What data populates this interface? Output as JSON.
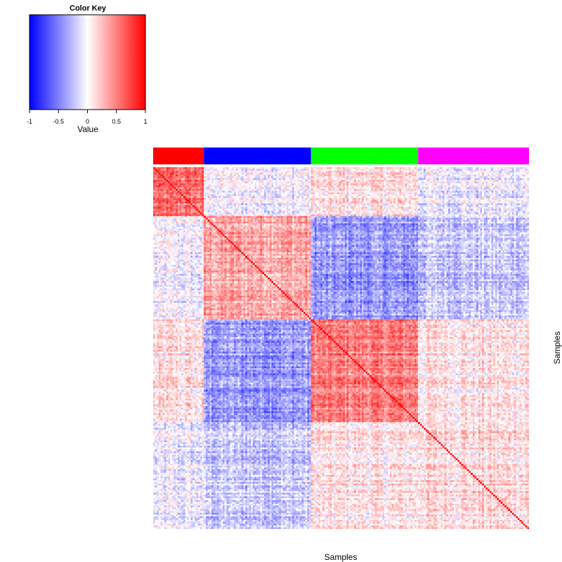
{
  "chart_data": {
    "type": "heatmap",
    "title": "",
    "xlabel": "Samples",
    "ylabel": "Samples",
    "matrix_size": 200,
    "diagonal_value": 1,
    "value_range": [
      -1,
      1
    ],
    "groups": [
      {
        "color": "#ff0000",
        "start": 0,
        "count": 27
      },
      {
        "color": "#0000ff",
        "start": 27,
        "count": 57
      },
      {
        "color": "#00ff00",
        "start": 84,
        "count": 57
      },
      {
        "color": "#ff00ff",
        "start": 141,
        "count": 59
      }
    ],
    "block_mean_correlation": [
      [
        0.55,
        -0.05,
        0.1,
        -0.08
      ],
      [
        -0.05,
        0.35,
        -0.4,
        -0.2
      ],
      [
        0.1,
        -0.4,
        0.5,
        0.1
      ],
      [
        -0.08,
        -0.2,
        0.1,
        0.15
      ]
    ],
    "color_key": {
      "title": "Color Key",
      "label": "Value",
      "low_color": "#0000ff",
      "mid_color": "#ffffff",
      "high_color": "#ff0000",
      "ticks": [
        "-1",
        "-0.5",
        "0",
        "0.5",
        "1"
      ],
      "tick_values": [
        -1,
        -0.5,
        0,
        0.5,
        1
      ]
    }
  }
}
